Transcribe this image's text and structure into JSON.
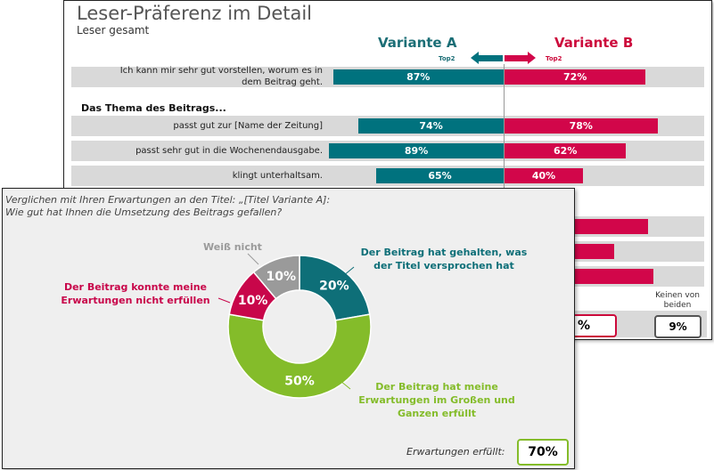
{
  "back_chart": {
    "title": "Leser-Präferenz im Detail",
    "subtitle": "Leser gesamt",
    "variant_a": "Variante A",
    "variant_b": "Variante B",
    "top2_label": "Top2",
    "section_heading": "Das Thema des Beitrags...",
    "none_label": "Keinen von beiden",
    "none_value": "9%",
    "partial_box_value": "%",
    "colors": {
      "a": "#00727e",
      "b": "#d2064a"
    }
  },
  "front_chart": {
    "question_line1": "Verglichen mit Ihren Erwartungen an den Titel: „[Titel Variante A]:",
    "question_line2": "Wie gut hat Ihnen die Umsetzung des Beitrags gefallen?",
    "summary_label": "Erwartungen erfüllt:",
    "summary_value": "70%"
  },
  "chart_data": [
    {
      "type": "bar",
      "orientation": "diverging-horizontal",
      "title": "Leser-Präferenz im Detail",
      "subtitle": "Leser gesamt",
      "categories": [
        "Ich kann mir sehr gut vorstellen, worum es in dem Beitrag geht.",
        "passt gut zur [Name der Zeitung]",
        "passt sehr gut in die Wochenendausgabe.",
        "klingt unterhaltsam."
      ],
      "series": [
        {
          "name": "Variante A",
          "values": [
            87,
            74,
            89,
            65
          ],
          "labels": [
            "87%",
            "74%",
            "89%",
            "65%"
          ],
          "color": "#00727e"
        },
        {
          "name": "Variante B",
          "values": [
            72,
            78,
            62,
            40
          ],
          "labels": [
            "72%",
            "78%",
            "62%",
            "40%"
          ],
          "color": "#d2064a"
        }
      ],
      "hidden_rows_b_values": [
        73,
        56,
        76
      ],
      "xlim": [
        0,
        100
      ]
    },
    {
      "type": "pie",
      "style": "donut",
      "slices": [
        {
          "label": "Der Beitrag hat gehalten, was der Titel versprochen hat",
          "value": 20,
          "display": "20%",
          "color": "#0e6f78"
        },
        {
          "label": "Der Beitrag hat meine Erwartungen im Großen und Ganzen erfüllt",
          "value": 50,
          "display": "50%",
          "color": "#84bc2a"
        },
        {
          "label": "Der Beitrag konnte meine Erwartungen nicht erfüllen",
          "value": 10,
          "display": "10%",
          "color": "#c8064a"
        },
        {
          "label": "Weiß nicht",
          "value": 10,
          "display": "10%",
          "color": "#9a9a9a"
        }
      ]
    }
  ]
}
